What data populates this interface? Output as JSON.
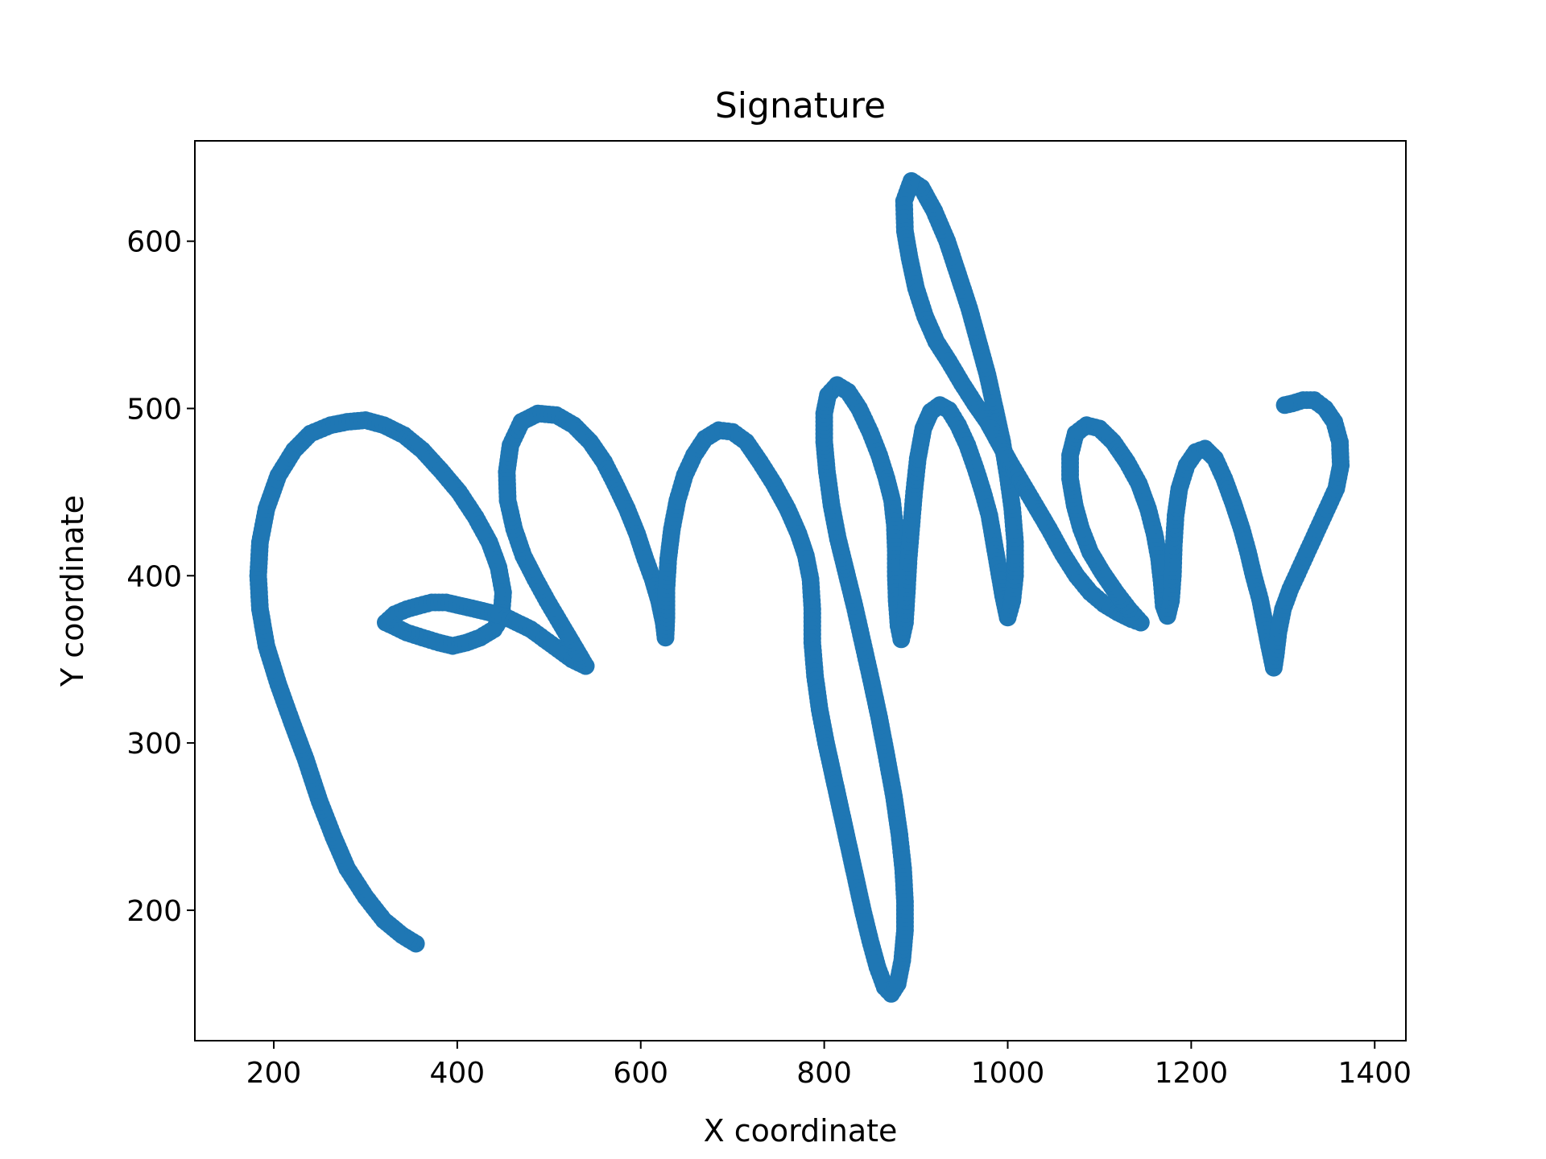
{
  "chart_data": {
    "type": "scatter",
    "title": "Signature",
    "xlabel": "X coordinate",
    "ylabel": "Y coordinate",
    "xlim": [
      114,
      1434
    ],
    "ylim": [
      122,
      660
    ],
    "xticks": [
      200,
      400,
      600,
      800,
      1000,
      1200,
      1400
    ],
    "yticks": [
      200,
      300,
      400,
      500,
      600
    ],
    "grid": false,
    "legend": "none",
    "series": [
      {
        "color": "#1f77b4",
        "strokes": [
          [
            [
              355,
              180
            ],
            [
              340,
              185
            ],
            [
              320,
              194
            ],
            [
              300,
              208
            ],
            [
              280,
              225
            ],
            [
              265,
              244
            ],
            [
              250,
              265
            ],
            [
              235,
              290
            ],
            [
              220,
              312
            ],
            [
              205,
              335
            ],
            [
              192,
              358
            ],
            [
              185,
              380
            ],
            [
              183,
              400
            ],
            [
              185,
              420
            ],
            [
              192,
              440
            ],
            [
              205,
              460
            ],
            [
              222,
              475
            ],
            [
              240,
              485
            ],
            [
              262,
              490
            ],
            [
              280,
              492
            ],
            [
              300,
              493
            ],
            [
              320,
              490
            ],
            [
              342,
              484
            ],
            [
              362,
              475
            ],
            [
              382,
              463
            ],
            [
              402,
              450
            ],
            [
              420,
              435
            ],
            [
              435,
              420
            ],
            [
              445,
              405
            ],
            [
              450,
              390
            ],
            [
              448,
              375
            ],
            [
              440,
              368
            ],
            [
              425,
              363
            ],
            [
              410,
              360
            ],
            [
              395,
              358
            ],
            [
              380,
              360
            ],
            [
              362,
              363
            ],
            [
              345,
              366
            ],
            [
              330,
              370
            ],
            [
              322,
              372
            ],
            [
              332,
              377
            ],
            [
              345,
              380
            ],
            [
              358,
              382
            ],
            [
              372,
              384
            ],
            [
              388,
              384
            ],
            [
              404,
              382
            ],
            [
              420,
              380
            ],
            [
              435,
              378
            ],
            [
              450,
              376
            ],
            [
              465,
              372
            ],
            [
              480,
              368
            ],
            [
              495,
              362
            ],
            [
              510,
              356
            ],
            [
              525,
              350
            ],
            [
              540,
              346
            ]
          ],
          [
            [
              540,
              346
            ],
            [
              525,
              360
            ],
            [
              512,
              372
            ],
            [
              498,
              385
            ],
            [
              485,
              398
            ],
            [
              472,
              412
            ],
            [
              462,
              428
            ],
            [
              455,
              445
            ],
            [
              454,
              462
            ],
            [
              458,
              478
            ],
            [
              470,
              492
            ],
            [
              488,
              497
            ],
            [
              508,
              496
            ],
            [
              527,
              490
            ],
            [
              545,
              480
            ],
            [
              560,
              468
            ],
            [
              572,
              455
            ],
            [
              585,
              440
            ],
            [
              596,
              425
            ],
            [
              605,
              410
            ],
            [
              613,
              398
            ],
            [
              620,
              385
            ],
            [
              625,
              372
            ],
            [
              627,
              363
            ],
            [
              628,
              375
            ],
            [
              628,
              392
            ],
            [
              630,
              410
            ],
            [
              634,
              428
            ],
            [
              640,
              445
            ],
            [
              648,
              460
            ],
            [
              658,
              472
            ],
            [
              670,
              482
            ],
            [
              685,
              487
            ],
            [
              700,
              486
            ],
            [
              715,
              480
            ],
            [
              730,
              468
            ],
            [
              745,
              455
            ],
            [
              760,
              440
            ],
            [
              772,
              425
            ],
            [
              780,
              412
            ],
            [
              785,
              398
            ],
            [
              787,
              380
            ],
            [
              787,
              360
            ],
            [
              790,
              340
            ],
            [
              795,
              320
            ],
            [
              802,
              300
            ],
            [
              810,
              280
            ],
            [
              818,
              260
            ],
            [
              826,
              240
            ],
            [
              834,
              220
            ],
            [
              842,
              200
            ],
            [
              850,
              182
            ],
            [
              858,
              166
            ],
            [
              866,
              154
            ],
            [
              873,
              150
            ],
            [
              880,
              156
            ],
            [
              885,
              170
            ],
            [
              888,
              188
            ],
            [
              888,
              205
            ],
            [
              886,
              225
            ],
            [
              882,
              245
            ],
            [
              876,
              268
            ],
            [
              868,
              292
            ],
            [
              860,
              315
            ],
            [
              851,
              338
            ],
            [
              842,
              360
            ],
            [
              833,
              382
            ],
            [
              824,
              402
            ],
            [
              815,
              422
            ],
            [
              808,
              442
            ],
            [
              803,
              462
            ],
            [
              800,
              480
            ],
            [
              800,
              497
            ],
            [
              804,
              508
            ],
            [
              814,
              514
            ],
            [
              826,
              510
            ],
            [
              838,
              500
            ],
            [
              850,
              486
            ],
            [
              860,
              472
            ],
            [
              868,
              458
            ],
            [
              874,
              445
            ],
            [
              877,
              430
            ],
            [
              878,
              415
            ],
            [
              878,
              400
            ],
            [
              879,
              385
            ],
            [
              881,
              370
            ],
            [
              884,
              362
            ],
            [
              888,
              372
            ],
            [
              890,
              390
            ],
            [
              892,
              410
            ],
            [
              895,
              430
            ],
            [
              898,
              450
            ],
            [
              902,
              470
            ],
            [
              908,
              488
            ],
            [
              916,
              498
            ],
            [
              926,
              502
            ],
            [
              936,
              499
            ],
            [
              946,
              490
            ],
            [
              956,
              478
            ],
            [
              965,
              464
            ],
            [
              973,
              450
            ],
            [
              980,
              436
            ],
            [
              985,
              420
            ],
            [
              990,
              404
            ],
            [
              995,
              388
            ],
            [
              1000,
              375
            ],
            [
              1005,
              385
            ],
            [
              1008,
              400
            ],
            [
              1008,
              420
            ],
            [
              1005,
              440
            ],
            [
              1000,
              460
            ],
            [
              994,
              480
            ],
            [
              986,
              500
            ],
            [
              978,
              520
            ],
            [
              968,
              540
            ],
            [
              958,
              560
            ],
            [
              946,
              580
            ],
            [
              934,
              600
            ],
            [
              920,
              618
            ],
            [
              906,
              632
            ],
            [
              895,
              636
            ],
            [
              887,
              624
            ],
            [
              888,
              606
            ],
            [
              893,
              590
            ],
            [
              900,
              572
            ],
            [
              910,
              555
            ],
            [
              922,
              540
            ],
            [
              936,
              528
            ],
            [
              950,
              515
            ],
            [
              964,
              503
            ],
            [
              978,
              492
            ],
            [
              990,
              480
            ],
            [
              1002,
              468
            ],
            [
              1016,
              455
            ],
            [
              1030,
              442
            ],
            [
              1045,
              428
            ],
            [
              1060,
              413
            ],
            [
              1075,
              400
            ],
            [
              1090,
              390
            ],
            [
              1105,
              383
            ],
            [
              1120,
              378
            ],
            [
              1135,
              374
            ],
            [
              1145,
              372
            ]
          ],
          [
            [
              1145,
              372
            ],
            [
              1132,
              380
            ],
            [
              1118,
              390
            ],
            [
              1103,
              402
            ],
            [
              1090,
              414
            ],
            [
              1080,
              428
            ],
            [
              1073,
              442
            ],
            [
              1068,
              458
            ],
            [
              1068,
              472
            ],
            [
              1074,
              485
            ],
            [
              1086,
              490
            ],
            [
              1100,
              488
            ],
            [
              1115,
              480
            ],
            [
              1130,
              468
            ],
            [
              1143,
              455
            ],
            [
              1153,
              440
            ],
            [
              1160,
              425
            ],
            [
              1165,
              410
            ],
            [
              1168,
              395
            ],
            [
              1170,
              382
            ],
            [
              1174,
              376
            ],
            [
              1178,
              385
            ],
            [
              1180,
              400
            ],
            [
              1181,
              418
            ],
            [
              1183,
              436
            ],
            [
              1187,
              452
            ],
            [
              1195,
              466
            ],
            [
              1205,
              474
            ],
            [
              1215,
              476
            ],
            [
              1226,
              470
            ],
            [
              1236,
              458
            ],
            [
              1246,
              443
            ],
            [
              1255,
              428
            ],
            [
              1262,
              414
            ],
            [
              1268,
              400
            ],
            [
              1275,
              386
            ],
            [
              1280,
              372
            ],
            [
              1285,
              358
            ],
            [
              1290,
              345
            ],
            [
              1292,
              352
            ],
            [
              1295,
              366
            ],
            [
              1300,
              380
            ],
            [
              1308,
              392
            ],
            [
              1318,
              404
            ],
            [
              1328,
              416
            ],
            [
              1338,
              428
            ],
            [
              1348,
              440
            ],
            [
              1358,
              452
            ],
            [
              1363,
              466
            ],
            [
              1362,
              480
            ],
            [
              1356,
              492
            ],
            [
              1346,
              500
            ],
            [
              1334,
              505
            ],
            [
              1322,
              505
            ],
            [
              1310,
              503
            ],
            [
              1302,
              502
            ]
          ]
        ]
      }
    ]
  }
}
